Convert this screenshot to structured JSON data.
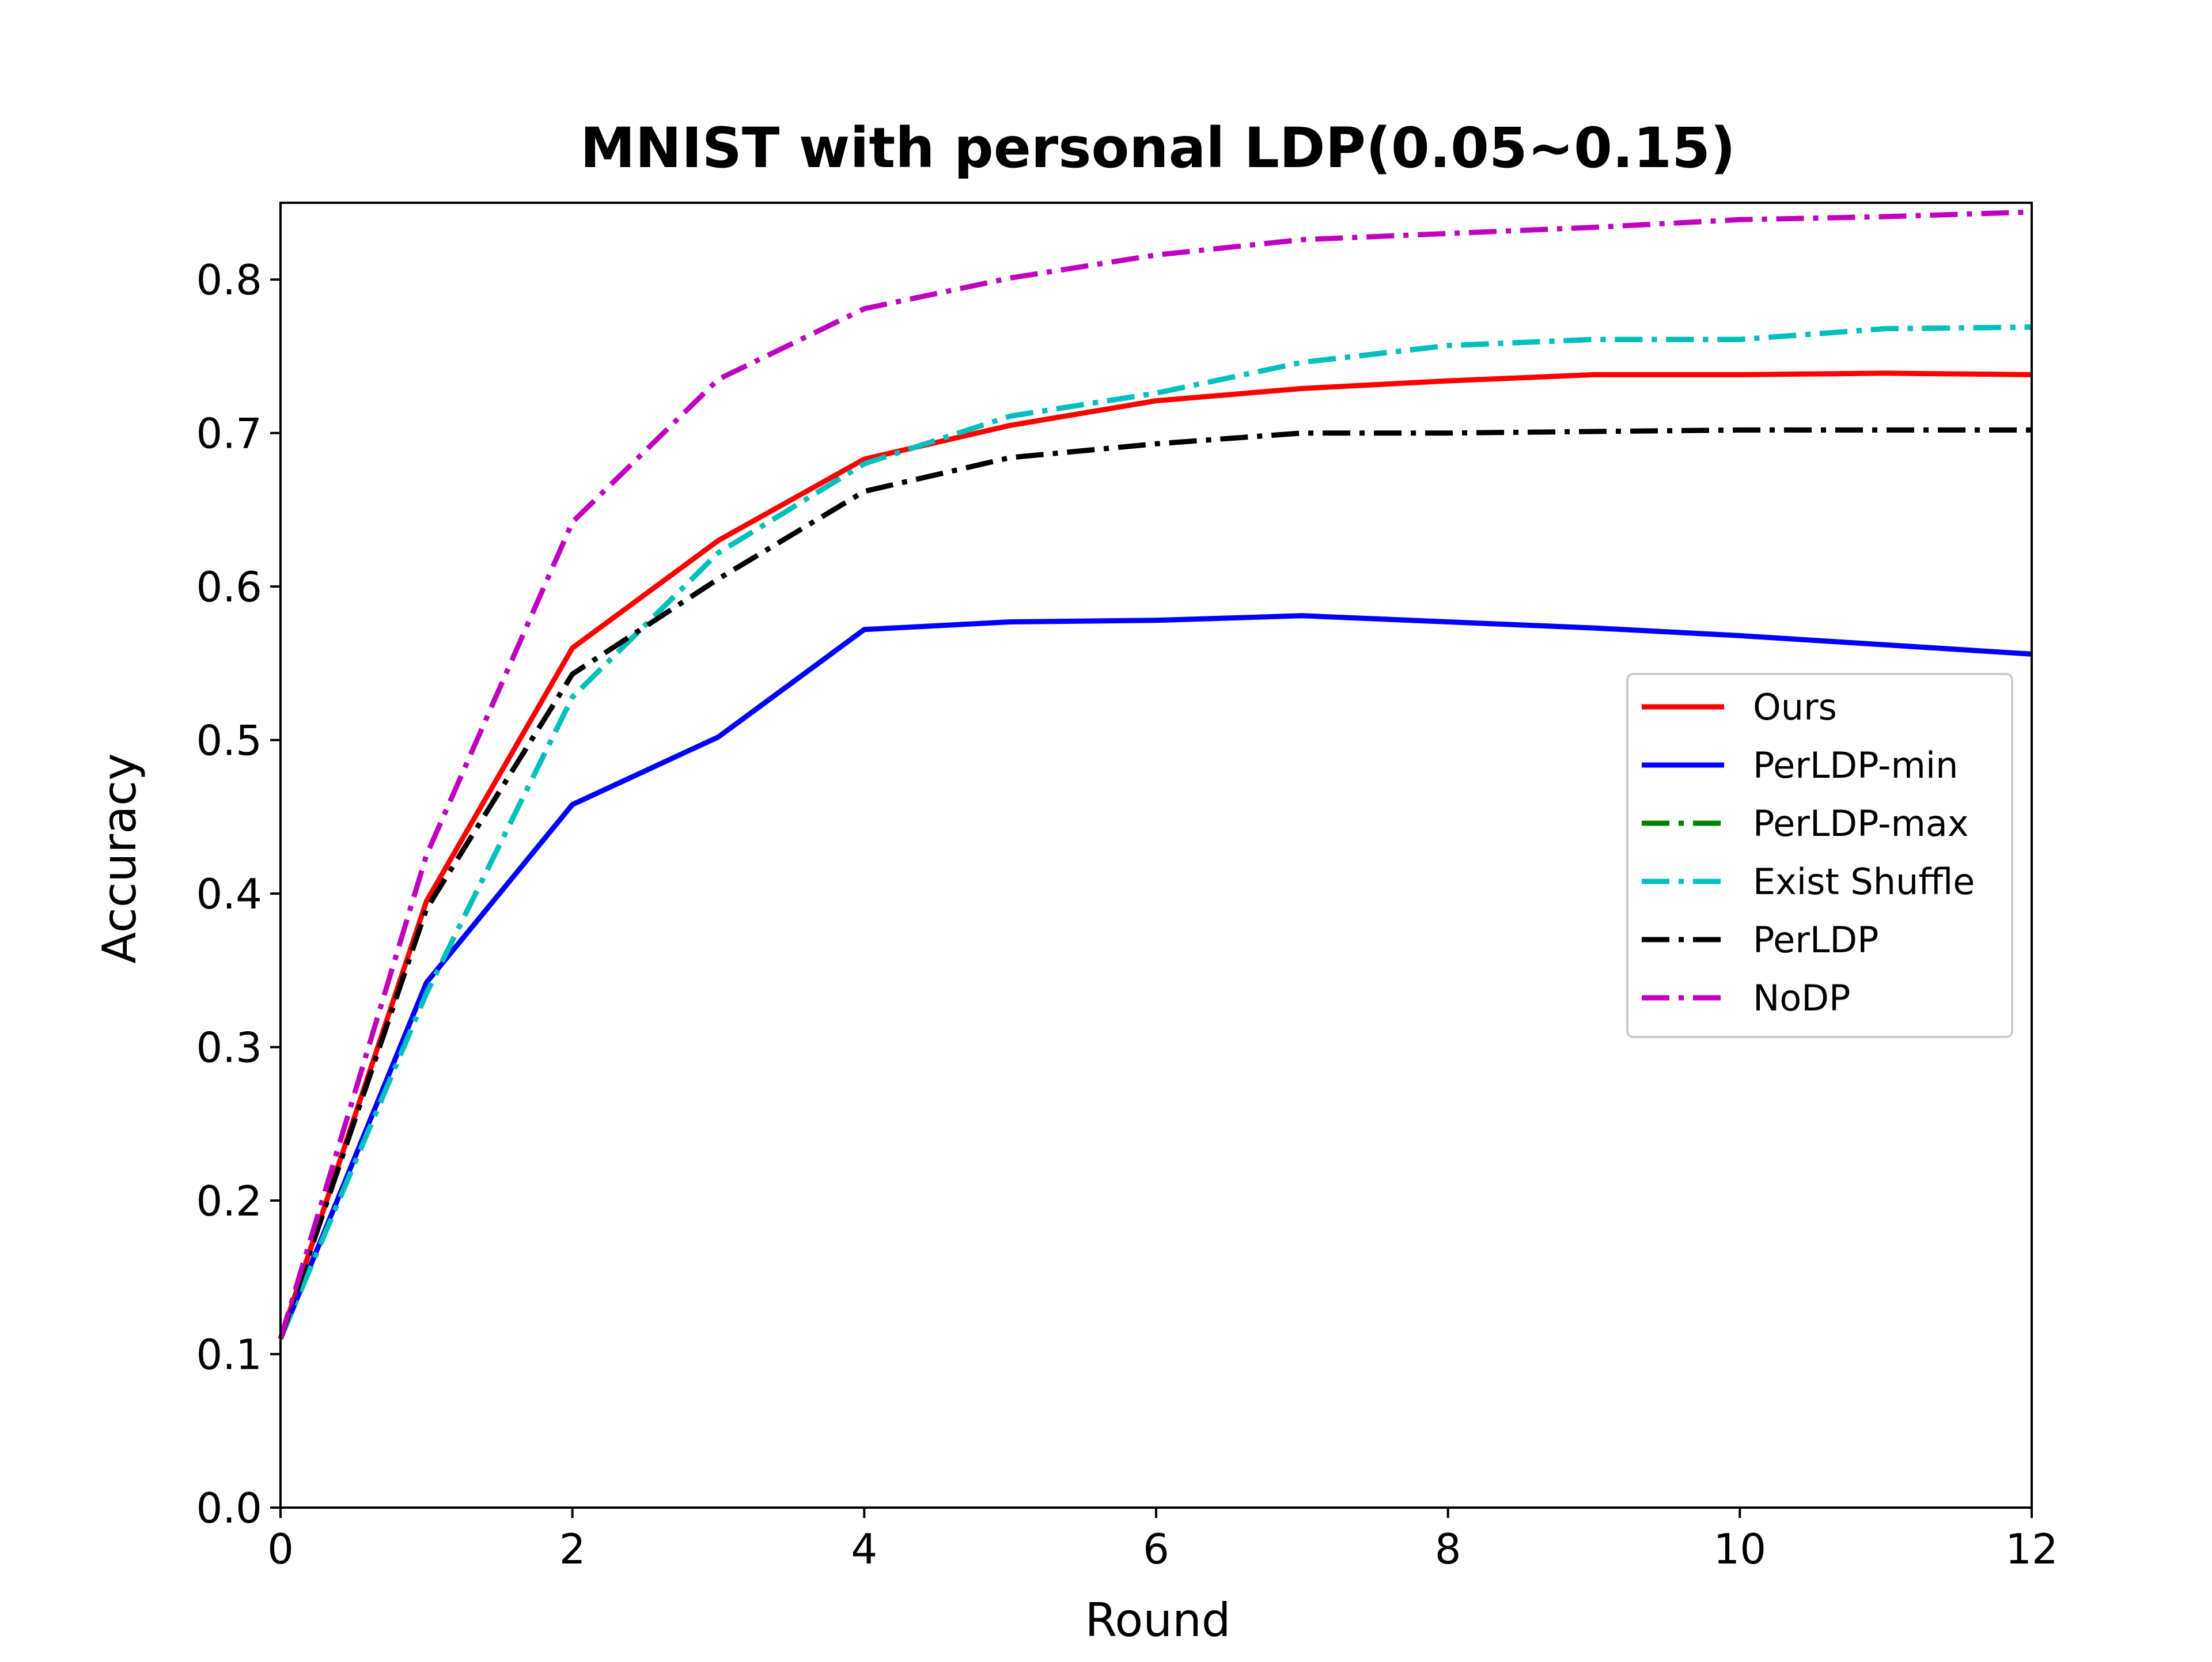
{
  "chart_data": {
    "type": "line",
    "title": "MNIST with personal LDP(0.05~0.15)",
    "xlabel": "Round",
    "ylabel": "Accuracy",
    "xlim": [
      0,
      12
    ],
    "ylim": [
      0.0,
      0.85
    ],
    "x_ticks": [
      "0",
      "2",
      "4",
      "6",
      "8",
      "10",
      "12"
    ],
    "y_ticks": [
      "0.0",
      "0.1",
      "0.2",
      "0.3",
      "0.4",
      "0.5",
      "0.6",
      "0.7",
      "0.8"
    ],
    "grid": false,
    "legend_position": "center-right",
    "x": [
      0,
      1,
      2,
      3,
      4,
      5,
      6,
      7,
      8,
      9,
      10,
      11,
      12
    ],
    "series": [
      {
        "name": "Ours",
        "color": "#ff0000",
        "style": "solid",
        "values": [
          0.11,
          0.395,
          0.56,
          0.63,
          0.683,
          0.705,
          0.721,
          0.729,
          0.734,
          0.738,
          0.738,
          0.739,
          0.738
        ]
      },
      {
        "name": "PerLDP-min",
        "color": "#0000ff",
        "style": "solid",
        "values": [
          0.11,
          0.342,
          0.458,
          0.502,
          0.572,
          0.577,
          0.578,
          0.581,
          0.577,
          0.573,
          0.568,
          0.562,
          0.556
        ]
      },
      {
        "name": "PerLDP-max",
        "color": "#008000",
        "style": "dashdot",
        "values": [
          0.11,
          0.335,
          0.528,
          0.622,
          0.68,
          0.711,
          0.726,
          0.746,
          0.757,
          0.761,
          0.761,
          0.768,
          0.769
        ]
      },
      {
        "name": "Exist Shuffle",
        "color": "#00bfbf",
        "style": "dashdot",
        "values": [
          0.11,
          0.335,
          0.528,
          0.622,
          0.68,
          0.711,
          0.726,
          0.746,
          0.757,
          0.761,
          0.761,
          0.768,
          0.769
        ]
      },
      {
        "name": "PerLDP",
        "color": "#000000",
        "style": "dashdot",
        "values": [
          0.11,
          0.39,
          0.543,
          0.605,
          0.662,
          0.684,
          0.693,
          0.7,
          0.7,
          0.701,
          0.702,
          0.702,
          0.702
        ]
      },
      {
        "name": "NoDP",
        "color": "#bf00bf",
        "style": "dashdot",
        "values": [
          0.11,
          0.425,
          0.642,
          0.735,
          0.781,
          0.801,
          0.816,
          0.826,
          0.83,
          0.834,
          0.839,
          0.841,
          0.844
        ]
      }
    ]
  }
}
